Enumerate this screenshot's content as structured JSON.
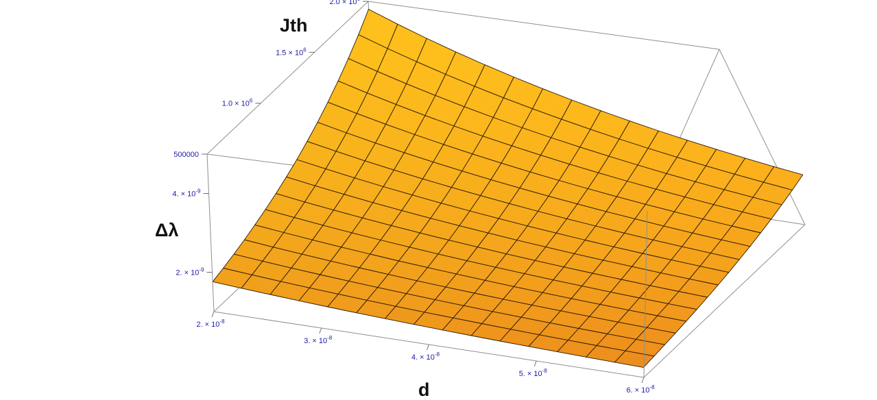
{
  "chart_data": {
    "type": "surface3d",
    "title": "",
    "axes": {
      "x": {
        "label": "d",
        "range": [
          2e-08,
          6e-08
        ],
        "ticks": [
          {
            "value": 2e-08,
            "mantissa": "2.",
            "exponent": "-8"
          },
          {
            "value": 3e-08,
            "mantissa": "3.",
            "exponent": "-8"
          },
          {
            "value": 4e-08,
            "mantissa": "4.",
            "exponent": "-8"
          },
          {
            "value": 5e-08,
            "mantissa": "5.",
            "exponent": "-8"
          },
          {
            "value": 6e-08,
            "mantissa": "6.",
            "exponent": "-8"
          }
        ]
      },
      "y": {
        "label": "Δλ",
        "range": [
          1e-09,
          5e-09
        ],
        "ticks": [
          {
            "value": 2e-09,
            "mantissa": "2.",
            "exponent": "-9"
          },
          {
            "value": 4e-09,
            "mantissa": "4.",
            "exponent": "-9"
          }
        ]
      },
      "z": {
        "label": "Jth",
        "range": [
          0,
          2000000
        ],
        "ticks": [
          {
            "value": 500000,
            "text": "500000"
          },
          {
            "value": 1000000,
            "mantissa": "1.0",
            "exponent": "6"
          },
          {
            "value": 1500000,
            "mantissa": "1.5",
            "exponent": "6"
          },
          {
            "value": 2000000,
            "mantissa": "2.0",
            "exponent": "6"
          }
        ]
      }
    },
    "surface": {
      "mesh_divisions": [
        15,
        15
      ],
      "corner_values": [
        {
          "d": 2e-08,
          "delta_lambda": 1e-09,
          "jth": 380000
        },
        {
          "d": 2e-08,
          "delta_lambda": 5e-09,
          "jth": 1900000
        },
        {
          "d": 6e-08,
          "delta_lambda": 1e-09,
          "jth": 127000
        },
        {
          "d": 6e-08,
          "delta_lambda": 5e-09,
          "jth": 633000
        }
      ],
      "colors": {
        "high": "#ffc21c",
        "low": "#f7921d",
        "mesh": "#2a1a08"
      }
    },
    "box_color": "#8e8e8e",
    "tick_label_color": "#1a1aa6",
    "grid": false,
    "legend": "none"
  }
}
